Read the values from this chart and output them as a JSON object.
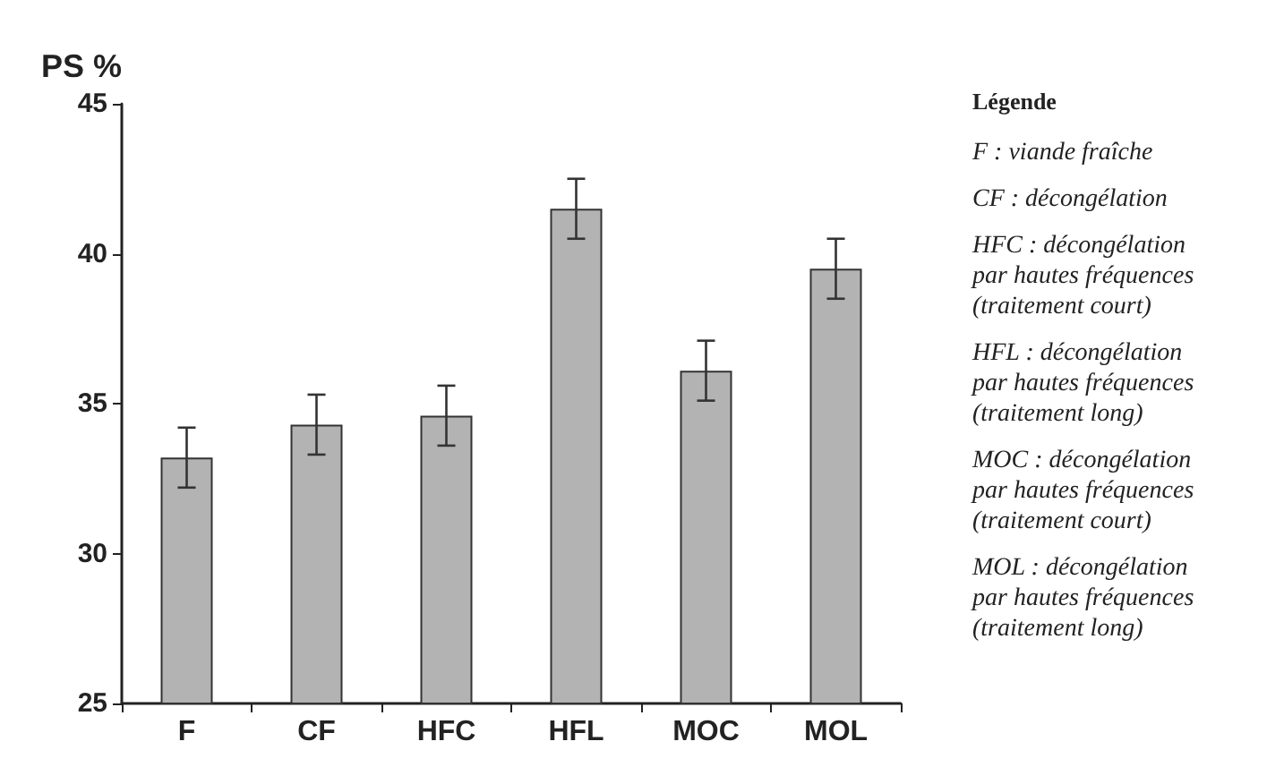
{
  "chart_data": {
    "type": "bar",
    "ylabel": "PS %",
    "categories": [
      "F",
      "CF",
      "HFC",
      "HFL",
      "MOC",
      "MOL"
    ],
    "values": [
      33.2,
      34.3,
      34.6,
      41.5,
      36.1,
      39.5
    ],
    "errors": [
      1.0,
      1.0,
      1.0,
      1.0,
      1.0,
      1.0
    ],
    "color": "#b3b3b3",
    "ylim": [
      25,
      45
    ],
    "yticks": [
      25,
      30,
      35,
      40,
      45
    ],
    "grid": false,
    "annotations": [
      "Légende",
      "F : viande fraîche",
      "CF : décongélation",
      "HFC : décongélation\npar hautes fréquences\n(traitement court)",
      "HFL : décongélation\npar hautes fréquences\n(traitement long)",
      "MOC : décongélation\npar hautes fréquences\n(traitement court)",
      "MOL : décongélation\npar hautes fréquences\n(traitement long)"
    ]
  }
}
